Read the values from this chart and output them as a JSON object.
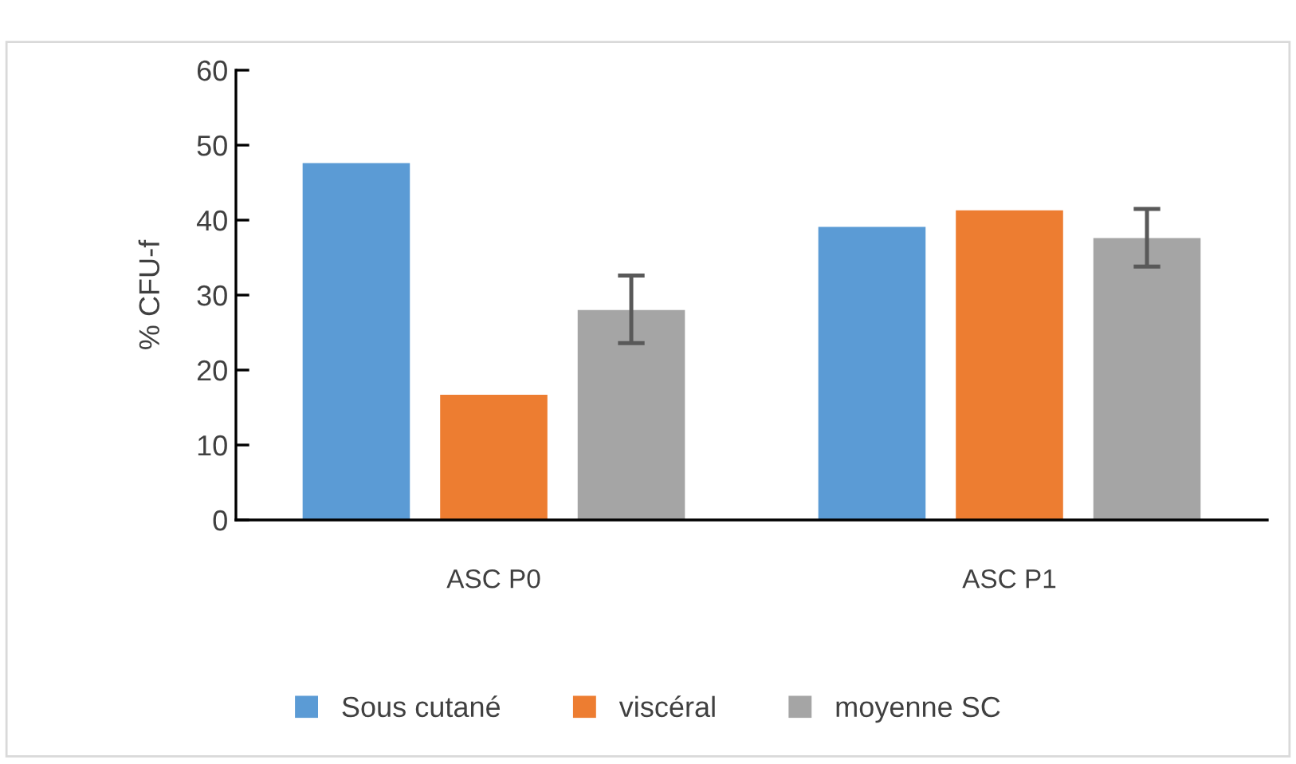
{
  "chart_data": {
    "type": "bar",
    "ylabel": "% CFU-f",
    "categories": [
      "ASC P0",
      "ASC P1"
    ],
    "series": [
      {
        "name": "Sous cutané",
        "color": "#5b9bd5",
        "values": [
          47.6,
          39.1
        ]
      },
      {
        "name": "viscéral",
        "color": "#ed7d31",
        "values": [
          16.7,
          41.3
        ]
      },
      {
        "name": "moyenne SC",
        "color": "#a5a5a5",
        "values": [
          28.0,
          37.6
        ],
        "errors": [
          [
            23.6,
            32.6
          ],
          [
            33.8,
            41.5
          ]
        ]
      }
    ],
    "ylim": [
      0,
      60
    ],
    "yticks": [
      0,
      10,
      20,
      30,
      40,
      50,
      60
    ],
    "grid": false,
    "legend": "bottom"
  }
}
